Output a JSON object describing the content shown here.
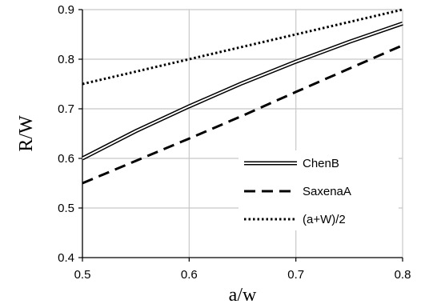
{
  "chart_data": {
    "type": "line",
    "xlabel": "a/w",
    "ylabel": "R/W",
    "xlim": [
      0.5,
      0.8
    ],
    "ylim": [
      0.4,
      0.9
    ],
    "x_ticks": [
      "0.5",
      "0.6",
      "0.7",
      "0.8"
    ],
    "y_ticks": [
      "0.4",
      "0.5",
      "0.6",
      "0.7",
      "0.8",
      "0.9"
    ],
    "grid": true,
    "legend_position": "center-right",
    "series": [
      {
        "name": "ChenB",
        "style": "double-line",
        "color": "#000000",
        "x": [
          0.5,
          0.55,
          0.6,
          0.65,
          0.7,
          0.75,
          0.8
        ],
        "y": [
          0.6,
          0.655,
          0.705,
          0.752,
          0.795,
          0.835,
          0.872
        ]
      },
      {
        "name": "SaxenaA",
        "style": "dashed",
        "color": "#000000",
        "x": [
          0.5,
          0.55,
          0.6,
          0.65,
          0.7,
          0.75,
          0.8
        ],
        "y": [
          0.55,
          0.595,
          0.64,
          0.686,
          0.734,
          0.781,
          0.828
        ]
      },
      {
        "name": "(a+W)/2",
        "style": "dotted",
        "color": "#000000",
        "x": [
          0.5,
          0.8
        ],
        "y": [
          0.75,
          0.9
        ]
      }
    ]
  }
}
